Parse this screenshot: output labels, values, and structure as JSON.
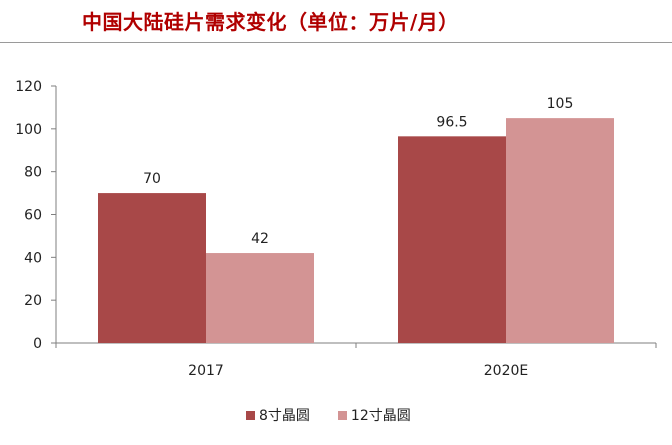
{
  "header": {
    "title": "中国大陆硅片需求变化（单位：万片/月）"
  },
  "colors": {
    "series_8inch": "#a84848",
    "series_12inch": "#d39494",
    "title": "#b00000",
    "axis": "#7f7f7f"
  },
  "chart_data": {
    "type": "bar",
    "title": "中国大陆硅片需求变化（单位：万片/月）",
    "xlabel": "",
    "ylabel": "",
    "categories": [
      "2017",
      "2020E"
    ],
    "series": [
      {
        "name": "8寸晶圆",
        "values": [
          70,
          96.5
        ],
        "labels": [
          "70",
          "96.5"
        ]
      },
      {
        "name": "12寸晶圆",
        "values": [
          42,
          105
        ],
        "labels": [
          "42",
          "105"
        ]
      }
    ],
    "ylim": [
      0,
      120
    ],
    "yticks": [
      0,
      20,
      40,
      60,
      80,
      100,
      120
    ],
    "grid": false,
    "legend_position": "bottom"
  },
  "legend": {
    "items": [
      {
        "label": "8寸晶圆"
      },
      {
        "label": "12寸晶圆"
      }
    ]
  }
}
